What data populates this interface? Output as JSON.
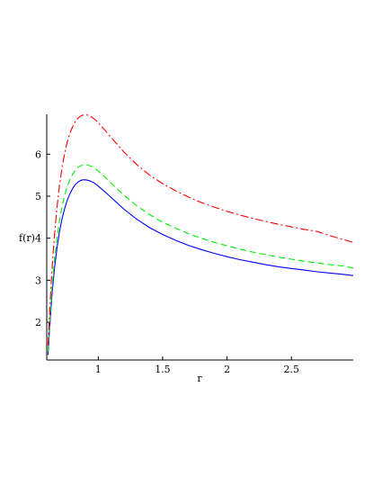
{
  "chart_data": {
    "type": "line",
    "title": "",
    "xlabel": "r",
    "ylabel": "f(r)",
    "xlim": [
      0.6,
      2.98
    ],
    "ylim": [
      1.1,
      6.95
    ],
    "xticks": [
      1,
      1.5,
      2,
      2.5
    ],
    "xtick_labels": [
      "1",
      "1.5",
      "2",
      "2.5"
    ],
    "yticks": [
      2,
      3,
      4,
      5,
      6
    ],
    "ytick_labels": [
      "2",
      "3",
      "4",
      "5",
      "6"
    ],
    "grid": false,
    "legend": "none",
    "series": [
      {
        "color": "#0000ff",
        "dash": "solid",
        "x": [
          0.61,
          0.62,
          0.64,
          0.66,
          0.68,
          0.7,
          0.72,
          0.74,
          0.76,
          0.78,
          0.8,
          0.82,
          0.84,
          0.86,
          0.88,
          0.9,
          0.92,
          0.94,
          0.96,
          0.98,
          1.0,
          1.05,
          1.1,
          1.2,
          1.3,
          1.4,
          1.5,
          1.6,
          1.7,
          1.8,
          1.9,
          2.0,
          2.1,
          2.2,
          2.3,
          2.4,
          2.5,
          2.6,
          2.7,
          2.8,
          2.9,
          2.98
        ],
        "y": [
          1.22,
          1.75,
          2.62,
          3.28,
          3.78,
          4.17,
          4.48,
          4.72,
          4.91,
          5.06,
          5.18,
          5.27,
          5.33,
          5.37,
          5.39,
          5.39,
          5.38,
          5.36,
          5.33,
          5.29,
          5.24,
          5.11,
          4.97,
          4.69,
          4.45,
          4.25,
          4.09,
          3.95,
          3.83,
          3.73,
          3.64,
          3.56,
          3.49,
          3.43,
          3.37,
          3.32,
          3.28,
          3.24,
          3.2,
          3.17,
          3.14,
          3.11
        ]
      },
      {
        "color": "#00ee00",
        "dash": "dashed",
        "x": [
          0.61,
          0.62,
          0.64,
          0.66,
          0.68,
          0.7,
          0.72,
          0.74,
          0.76,
          0.78,
          0.8,
          0.82,
          0.84,
          0.86,
          0.88,
          0.9,
          0.92,
          0.94,
          0.96,
          0.98,
          1.0,
          1.05,
          1.1,
          1.2,
          1.3,
          1.4,
          1.5,
          1.6,
          1.7,
          1.8,
          1.9,
          2.0,
          2.1,
          2.2,
          2.3,
          2.4,
          2.5,
          2.6,
          2.7,
          2.8,
          2.9,
          2.98
        ],
        "y": [
          1.3,
          1.85,
          2.78,
          3.48,
          4.02,
          4.44,
          4.77,
          5.03,
          5.24,
          5.4,
          5.52,
          5.61,
          5.68,
          5.72,
          5.74,
          5.75,
          5.74,
          5.72,
          5.69,
          5.65,
          5.6,
          5.46,
          5.31,
          5.02,
          4.77,
          4.56,
          4.38,
          4.24,
          4.11,
          4.0,
          3.9,
          3.82,
          3.74,
          3.67,
          3.61,
          3.55,
          3.5,
          3.45,
          3.41,
          3.37,
          3.34,
          3.29
        ]
      },
      {
        "color": "#ff0000",
        "dash": "dashdot",
        "x": [
          0.61,
          0.62,
          0.64,
          0.66,
          0.68,
          0.7,
          0.72,
          0.74,
          0.76,
          0.78,
          0.8,
          0.82,
          0.84,
          0.86,
          0.88,
          0.9,
          0.92,
          0.94,
          0.96,
          0.98,
          1.0,
          1.05,
          1.1,
          1.2,
          1.3,
          1.4,
          1.5,
          1.6,
          1.7,
          1.8,
          1.9,
          2.0,
          2.1,
          2.2,
          2.3,
          2.4,
          2.5,
          2.6,
          2.7,
          2.8,
          2.9,
          2.98
        ],
        "y": [
          1.45,
          2.1,
          3.22,
          4.08,
          4.75,
          5.28,
          5.7,
          6.04,
          6.3,
          6.5,
          6.65,
          6.77,
          6.85,
          6.9,
          6.93,
          6.94,
          6.93,
          6.9,
          6.86,
          6.81,
          6.75,
          6.58,
          6.4,
          6.05,
          5.75,
          5.5,
          5.3,
          5.13,
          4.98,
          4.85,
          4.74,
          4.64,
          4.55,
          4.47,
          4.4,
          4.33,
          4.27,
          4.21,
          4.16,
          4.06,
          3.97,
          3.9
        ]
      }
    ]
  }
}
